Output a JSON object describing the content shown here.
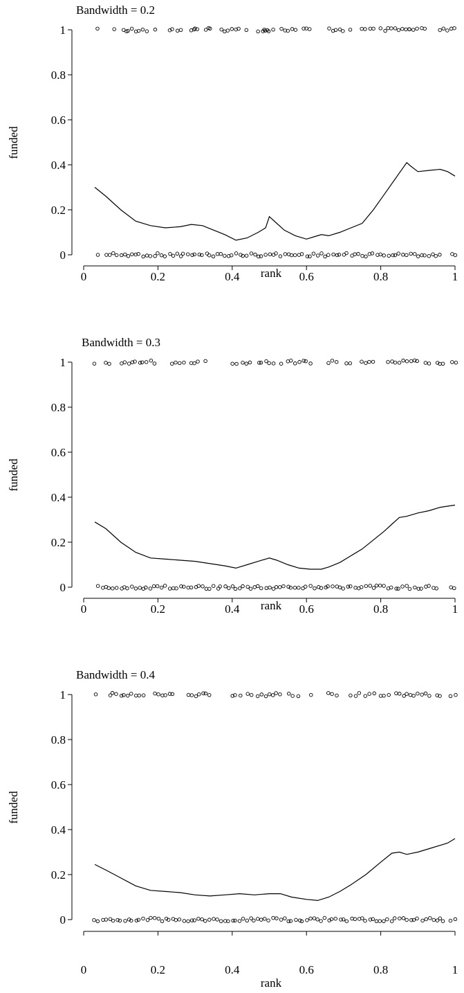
{
  "chart_data": [
    {
      "type": "scatter",
      "title": "Bandwidth = 0.2",
      "xlabel": "rank",
      "ylabel": "funded",
      "xlim": [
        0,
        1
      ],
      "ylim": [
        0,
        1
      ],
      "xticks": [
        "0",
        "0.2",
        "0.4",
        "0.6",
        "0.8",
        "1"
      ],
      "yticks": [
        "0",
        "0.2",
        "0.4",
        "0.6",
        "0.8",
        "1"
      ],
      "grid": false,
      "series": [
        {
          "kind": "points",
          "y": 1,
          "x": [
            0.04,
            0.08,
            0.11,
            0.115,
            0.12,
            0.13,
            0.14,
            0.15,
            0.16,
            0.17,
            0.19,
            0.23,
            0.24,
            0.25,
            0.26,
            0.29,
            0.295,
            0.3,
            0.305,
            0.33,
            0.335,
            0.34,
            0.37,
            0.38,
            0.39,
            0.4,
            0.41,
            0.42,
            0.44,
            0.47,
            0.48,
            0.485,
            0.49,
            0.495,
            0.5,
            0.51,
            0.53,
            0.54,
            0.55,
            0.56,
            0.57,
            0.59,
            0.6,
            0.61,
            0.66,
            0.67,
            0.68,
            0.69,
            0.7,
            0.72,
            0.75,
            0.76,
            0.77,
            0.78,
            0.8,
            0.81,
            0.82,
            0.83,
            0.84,
            0.85,
            0.86,
            0.87,
            0.875,
            0.88,
            0.89,
            0.9,
            0.91,
            0.92,
            0.96,
            0.97,
            0.98,
            0.99,
            1.0
          ]
        },
        {
          "kind": "points",
          "y": 0,
          "x": [
            0.04,
            0.06,
            0.07,
            0.08,
            0.09,
            0.1,
            0.11,
            0.12,
            0.13,
            0.14,
            0.15,
            0.16,
            0.17,
            0.18,
            0.19,
            0.2,
            0.21,
            0.22,
            0.23,
            0.24,
            0.25,
            0.26,
            0.27,
            0.28,
            0.29,
            0.3,
            0.31,
            0.32,
            0.33,
            0.34,
            0.35,
            0.36,
            0.37,
            0.38,
            0.39,
            0.4,
            0.41,
            0.42,
            0.43,
            0.44,
            0.45,
            0.46,
            0.47,
            0.48,
            0.49,
            0.5,
            0.51,
            0.52,
            0.53,
            0.54,
            0.55,
            0.56,
            0.57,
            0.58,
            0.59,
            0.6,
            0.61,
            0.62,
            0.63,
            0.64,
            0.65,
            0.66,
            0.67,
            0.68,
            0.69,
            0.7,
            0.71,
            0.72,
            0.73,
            0.74,
            0.75,
            0.76,
            0.77,
            0.78,
            0.79,
            0.8,
            0.81,
            0.82,
            0.83,
            0.84,
            0.85,
            0.86,
            0.87,
            0.88,
            0.89,
            0.9,
            0.91,
            0.92,
            0.93,
            0.94,
            0.95,
            0.96,
            0.99,
            1.0
          ]
        },
        {
          "kind": "line",
          "x": [
            0.03,
            0.06,
            0.1,
            0.14,
            0.18,
            0.22,
            0.26,
            0.29,
            0.32,
            0.35,
            0.38,
            0.41,
            0.44,
            0.47,
            0.49,
            0.5,
            0.52,
            0.54,
            0.57,
            0.6,
            0.62,
            0.64,
            0.66,
            0.69,
            0.72,
            0.75,
            0.78,
            0.81,
            0.84,
            0.87,
            0.88,
            0.9,
            0.93,
            0.96,
            0.98,
            1.0
          ],
          "y": [
            0.3,
            0.26,
            0.2,
            0.15,
            0.13,
            0.12,
            0.125,
            0.135,
            0.13,
            0.11,
            0.09,
            0.065,
            0.075,
            0.1,
            0.12,
            0.17,
            0.14,
            0.11,
            0.085,
            0.07,
            0.08,
            0.09,
            0.085,
            0.1,
            0.12,
            0.14,
            0.2,
            0.27,
            0.34,
            0.41,
            0.395,
            0.37,
            0.375,
            0.38,
            0.37,
            0.35
          ]
        }
      ]
    },
    {
      "type": "scatter",
      "title": "Bandwidth = 0.3",
      "xlabel": "rank",
      "ylabel": "funded",
      "xlim": [
        0,
        1
      ],
      "ylim": [
        0,
        1
      ],
      "xticks": [
        "0",
        "0.2",
        "0.4",
        "0.6",
        "0.8",
        "1"
      ],
      "yticks": [
        "0",
        "0.2",
        "0.4",
        "0.6",
        "0.8",
        "1"
      ],
      "grid": false,
      "series": [
        {
          "kind": "points",
          "y": 1,
          "x": [
            0.03,
            0.06,
            0.07,
            0.1,
            0.11,
            0.12,
            0.13,
            0.14,
            0.15,
            0.16,
            0.17,
            0.18,
            0.19,
            0.24,
            0.25,
            0.26,
            0.27,
            0.29,
            0.3,
            0.31,
            0.33,
            0.4,
            0.41,
            0.43,
            0.44,
            0.45,
            0.47,
            0.48,
            0.49,
            0.5,
            0.51,
            0.53,
            0.55,
            0.56,
            0.57,
            0.58,
            0.59,
            0.6,
            0.61,
            0.66,
            0.67,
            0.68,
            0.71,
            0.72,
            0.75,
            0.76,
            0.77,
            0.78,
            0.82,
            0.83,
            0.84,
            0.85,
            0.86,
            0.87,
            0.88,
            0.89,
            0.9,
            0.92,
            0.93,
            0.95,
            0.96,
            0.97,
            0.99,
            1.0
          ]
        },
        {
          "kind": "points",
          "y": 0,
          "x": [
            0.04,
            0.05,
            0.06,
            0.07,
            0.08,
            0.09,
            0.1,
            0.11,
            0.12,
            0.13,
            0.14,
            0.15,
            0.16,
            0.17,
            0.18,
            0.19,
            0.2,
            0.21,
            0.22,
            0.23,
            0.24,
            0.25,
            0.26,
            0.27,
            0.28,
            0.29,
            0.3,
            0.31,
            0.32,
            0.33,
            0.34,
            0.35,
            0.36,
            0.37,
            0.38,
            0.39,
            0.4,
            0.41,
            0.42,
            0.43,
            0.44,
            0.45,
            0.46,
            0.47,
            0.48,
            0.49,
            0.5,
            0.51,
            0.52,
            0.53,
            0.54,
            0.55,
            0.56,
            0.57,
            0.58,
            0.59,
            0.6,
            0.61,
            0.62,
            0.63,
            0.64,
            0.65,
            0.66,
            0.67,
            0.68,
            0.69,
            0.7,
            0.71,
            0.72,
            0.73,
            0.74,
            0.75,
            0.76,
            0.77,
            0.78,
            0.79,
            0.8,
            0.81,
            0.82,
            0.83,
            0.84,
            0.85,
            0.86,
            0.87,
            0.88,
            0.89,
            0.9,
            0.91,
            0.92,
            0.93,
            0.94,
            0.95,
            0.99,
            1.0
          ]
        },
        {
          "kind": "line",
          "x": [
            0.03,
            0.06,
            0.1,
            0.14,
            0.18,
            0.22,
            0.26,
            0.3,
            0.34,
            0.38,
            0.41,
            0.44,
            0.47,
            0.5,
            0.52,
            0.55,
            0.58,
            0.61,
            0.64,
            0.66,
            0.69,
            0.72,
            0.75,
            0.78,
            0.81,
            0.83,
            0.85,
            0.87,
            0.9,
            0.93,
            0.96,
            1.0
          ],
          "y": [
            0.29,
            0.26,
            0.2,
            0.155,
            0.13,
            0.125,
            0.12,
            0.115,
            0.105,
            0.095,
            0.085,
            0.1,
            0.115,
            0.13,
            0.12,
            0.1,
            0.085,
            0.08,
            0.08,
            0.09,
            0.11,
            0.14,
            0.17,
            0.21,
            0.25,
            0.28,
            0.31,
            0.315,
            0.33,
            0.34,
            0.355,
            0.365
          ]
        }
      ]
    },
    {
      "type": "scatter",
      "title": "Bandwidth = 0.4",
      "xlabel": "rank",
      "ylabel": "funded",
      "xlim": [
        0,
        1
      ],
      "ylim": [
        0,
        1
      ],
      "xticks": [
        "0",
        "0.2",
        "0.4",
        "0.6",
        "0.8",
        "1"
      ],
      "yticks": [
        "0",
        "0.2",
        "0.4",
        "0.6",
        "0.8",
        "1"
      ],
      "grid": false,
      "series": [
        {
          "kind": "points",
          "y": 1,
          "x": [
            0.03,
            0.07,
            0.08,
            0.09,
            0.1,
            0.11,
            0.12,
            0.13,
            0.14,
            0.15,
            0.16,
            0.19,
            0.2,
            0.21,
            0.22,
            0.23,
            0.24,
            0.28,
            0.29,
            0.3,
            0.31,
            0.32,
            0.33,
            0.34,
            0.4,
            0.41,
            0.42,
            0.44,
            0.45,
            0.47,
            0.48,
            0.49,
            0.5,
            0.51,
            0.52,
            0.53,
            0.55,
            0.56,
            0.58,
            0.61,
            0.66,
            0.67,
            0.68,
            0.72,
            0.73,
            0.74,
            0.76,
            0.77,
            0.78,
            0.8,
            0.81,
            0.82,
            0.84,
            0.85,
            0.86,
            0.87,
            0.88,
            0.89,
            0.9,
            0.91,
            0.92,
            0.93,
            0.95,
            0.96,
            0.99,
            1.0
          ]
        },
        {
          "kind": "points",
          "y": 0,
          "x": [
            0.03,
            0.04,
            0.05,
            0.06,
            0.07,
            0.08,
            0.09,
            0.1,
            0.11,
            0.12,
            0.13,
            0.14,
            0.15,
            0.16,
            0.17,
            0.18,
            0.19,
            0.2,
            0.21,
            0.22,
            0.23,
            0.24,
            0.25,
            0.26,
            0.27,
            0.28,
            0.29,
            0.3,
            0.31,
            0.32,
            0.33,
            0.34,
            0.35,
            0.36,
            0.37,
            0.38,
            0.39,
            0.4,
            0.41,
            0.42,
            0.43,
            0.44,
            0.45,
            0.46,
            0.47,
            0.48,
            0.49,
            0.5,
            0.51,
            0.52,
            0.53,
            0.54,
            0.55,
            0.56,
            0.57,
            0.58,
            0.59,
            0.6,
            0.61,
            0.62,
            0.63,
            0.64,
            0.65,
            0.66,
            0.67,
            0.68,
            0.69,
            0.7,
            0.71,
            0.72,
            0.73,
            0.74,
            0.75,
            0.76,
            0.77,
            0.78,
            0.79,
            0.8,
            0.81,
            0.82,
            0.83,
            0.84,
            0.85,
            0.86,
            0.87,
            0.88,
            0.89,
            0.9,
            0.91,
            0.92,
            0.93,
            0.94,
            0.95,
            0.96,
            0.97,
            0.99,
            1.0
          ]
        },
        {
          "kind": "line",
          "x": [
            0.03,
            0.06,
            0.1,
            0.14,
            0.18,
            0.22,
            0.26,
            0.3,
            0.34,
            0.38,
            0.42,
            0.46,
            0.5,
            0.53,
            0.56,
            0.6,
            0.63,
            0.66,
            0.69,
            0.72,
            0.76,
            0.8,
            0.83,
            0.85,
            0.87,
            0.9,
            0.94,
            0.98,
            1.0
          ],
          "y": [
            0.245,
            0.22,
            0.185,
            0.15,
            0.13,
            0.125,
            0.12,
            0.11,
            0.105,
            0.11,
            0.115,
            0.11,
            0.115,
            0.115,
            0.1,
            0.09,
            0.085,
            0.1,
            0.125,
            0.155,
            0.2,
            0.255,
            0.295,
            0.3,
            0.29,
            0.3,
            0.32,
            0.34,
            0.36
          ]
        }
      ]
    }
  ]
}
